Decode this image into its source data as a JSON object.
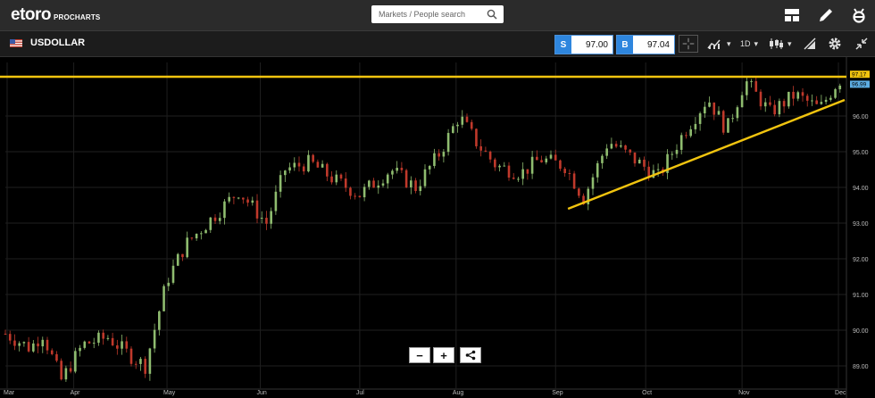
{
  "app": {
    "logo_main": "etoro",
    "logo_sub": "PROCHARTS"
  },
  "search": {
    "placeholder": "Markets / People search"
  },
  "header_icons": [
    "layout-icon",
    "pencil-icon",
    "etoro-e-icon"
  ],
  "instrument": {
    "symbol": "USDOLLAR",
    "sell_tag": "S",
    "sell_price": "97.00",
    "buy_tag": "B",
    "buy_price": "97.04"
  },
  "toolbar": {
    "interval": "1D",
    "icons": [
      "chart-type-icon",
      "candles-icon",
      "draw-tool-icon",
      "settings-gear-icon",
      "collapse-icon"
    ]
  },
  "colors": {
    "up_candle": "#8fbc6f",
    "down_candle": "#c0392b",
    "line": "#f1c40f",
    "sell_bg": "#2e86de",
    "last_label": "#f1c40f",
    "bid_label": "#5dade2"
  },
  "chart_data": {
    "type": "candlestick",
    "x_labels": [
      "Mar",
      "Apr",
      "May",
      "Jun",
      "Jul",
      "Aug",
      "Sep",
      "Oct",
      "Nov",
      "Dec"
    ],
    "y_ticks": [
      "89.00",
      "90.00",
      "91.00",
      "92.00",
      "93.00",
      "94.00",
      "95.00",
      "96.00"
    ],
    "ylim": [
      88.4,
      97.5
    ],
    "last_price_label": "97.17",
    "bid_price_label": "96.99",
    "anchors": [
      [
        0,
        89.9
      ],
      [
        8,
        89.5
      ],
      [
        12,
        89.9
      ],
      [
        18,
        88.6
      ],
      [
        25,
        89.6
      ],
      [
        33,
        89.8
      ],
      [
        40,
        89.3
      ],
      [
        45,
        89.0
      ],
      [
        52,
        91.4
      ],
      [
        58,
        92.4
      ],
      [
        66,
        93.1
      ],
      [
        75,
        93.9
      ],
      [
        84,
        93.0
      ],
      [
        90,
        94.5
      ],
      [
        98,
        94.7
      ],
      [
        106,
        94.2
      ],
      [
        114,
        93.8
      ],
      [
        124,
        94.5
      ],
      [
        132,
        94.0
      ],
      [
        140,
        95.0
      ],
      [
        146,
        96.0
      ],
      [
        152,
        95.2
      ],
      [
        158,
        94.6
      ],
      [
        166,
        94.4
      ],
      [
        172,
        94.8
      ],
      [
        180,
        94.6
      ],
      [
        186,
        93.7
      ],
      [
        194,
        95.3
      ],
      [
        202,
        94.8
      ],
      [
        210,
        94.3
      ],
      [
        218,
        95.5
      ],
      [
        226,
        96.5
      ],
      [
        232,
        95.6
      ],
      [
        238,
        97.0
      ],
      [
        246,
        96.1
      ],
      [
        254,
        96.6
      ],
      [
        262,
        96.2
      ],
      [
        268,
        97.0
      ]
    ],
    "horizontal_line": {
      "price": 97.1
    },
    "trend_line": {
      "from": [
        181,
        93.4
      ],
      "to": [
        270,
        96.45
      ]
    },
    "total_days": 270
  }
}
